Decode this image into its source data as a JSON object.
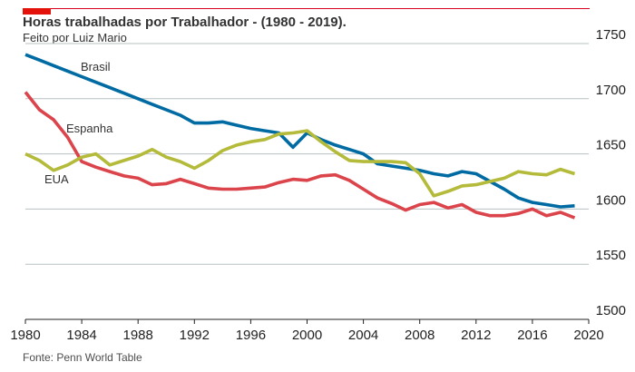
{
  "header": {
    "title": "Horas trabalhadas por Trabalhador - (1980 - 2019).",
    "subtitle": "Feito por Luiz Mario"
  },
  "footer": {
    "source": "Fonte: Penn World Table"
  },
  "colors": {
    "accent": "#e3120b",
    "grid": "#b7c0c2",
    "brasil": "#006ba2",
    "espanha": "#db444b",
    "eua": "#b4ba39"
  },
  "chart_data": {
    "type": "line",
    "title": "Horas trabalhadas por Trabalhador - (1980 - 2019).",
    "xlabel": "",
    "ylabel": "",
    "xlim": [
      1980,
      2020
    ],
    "ylim": [
      1500,
      1750
    ],
    "x_ticks": [
      "1980",
      "1984",
      "1988",
      "1992",
      "1996",
      "2000",
      "2004",
      "2008",
      "2012",
      "2016",
      "2020"
    ],
    "y_ticks": [
      "1500",
      "1550",
      "1600",
      "1650",
      "1700",
      "1750"
    ],
    "grid": "horizontal",
    "legend": "inline labels",
    "x": [
      1980,
      1981,
      1982,
      1983,
      1984,
      1985,
      1986,
      1987,
      1988,
      1989,
      1990,
      1991,
      1992,
      1993,
      1994,
      1995,
      1996,
      1997,
      1998,
      1999,
      2000,
      2001,
      2002,
      2003,
      2004,
      2005,
      2006,
      2007,
      2008,
      2009,
      2010,
      2011,
      2012,
      2013,
      2014,
      2015,
      2016,
      2017,
      2018,
      2019
    ],
    "series": [
      {
        "name": "Brasil",
        "color": "#006ba2",
        "values": [
          1740,
          1735,
          1730,
          1725,
          1720,
          1715,
          1710,
          1705,
          1700,
          1695,
          1690,
          1685,
          1678,
          1678,
          1679,
          1676,
          1673,
          1671,
          1669,
          1656,
          1669,
          1663,
          1658,
          1654,
          1650,
          1641,
          1639,
          1637,
          1635,
          1632,
          1630,
          1634,
          1632,
          1625,
          1618,
          1610,
          1606,
          1604,
          1602,
          1603
        ]
      },
      {
        "name": "Espanha",
        "color": "#db444b",
        "values": [
          1706,
          1690,
          1681,
          1665,
          1643,
          1638,
          1634,
          1630,
          1628,
          1622,
          1623,
          1627,
          1623,
          1619,
          1618,
          1618,
          1619,
          1620,
          1624,
          1627,
          1626,
          1630,
          1631,
          1626,
          1618,
          1610,
          1605,
          1599,
          1604,
          1606,
          1601,
          1604,
          1597,
          1594,
          1594,
          1596,
          1600,
          1594,
          1597,
          1592
        ]
      },
      {
        "name": "EUA",
        "color": "#b4ba39",
        "values": [
          1650,
          1644,
          1635,
          1640,
          1647,
          1650,
          1640,
          1644,
          1648,
          1654,
          1647,
          1643,
          1637,
          1644,
          1653,
          1658,
          1661,
          1663,
          1668,
          1669,
          1671,
          1661,
          1652,
          1644,
          1643,
          1643,
          1643,
          1642,
          1632,
          1612,
          1616,
          1621,
          1622,
          1625,
          1628,
          1634,
          1632,
          1631,
          1636,
          1632
        ]
      }
    ]
  }
}
